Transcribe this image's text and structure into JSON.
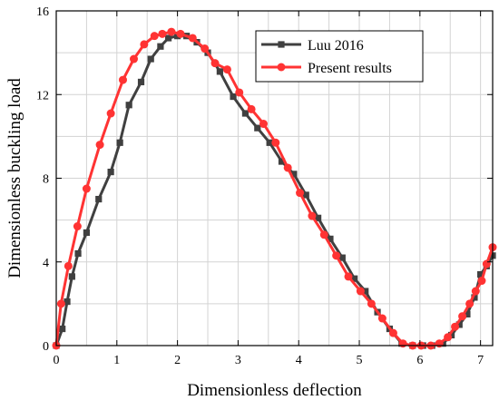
{
  "chart_data": {
    "type": "line",
    "title": "",
    "xlabel": "Dimensionless deflection",
    "ylabel": "Dimensionless buckling load",
    "xlim": [
      0,
      7.2
    ],
    "ylim": [
      0,
      16
    ],
    "x_ticks": [
      0,
      1,
      2,
      3,
      4,
      5,
      6,
      7
    ],
    "y_ticks": [
      0,
      4,
      8,
      12,
      16
    ],
    "grid": true,
    "legend_position": "top-right",
    "series": [
      {
        "name": "Luu 2016",
        "color": "#404040",
        "marker": "square",
        "x": [
          0.0,
          0.1,
          0.18,
          0.26,
          0.36,
          0.5,
          0.7,
          0.9,
          1.05,
          1.2,
          1.4,
          1.56,
          1.72,
          1.85,
          2.0,
          2.15,
          2.32,
          2.5,
          2.7,
          2.92,
          3.12,
          3.32,
          3.52,
          3.72,
          3.92,
          4.12,
          4.32,
          4.52,
          4.72,
          4.92,
          5.1,
          5.3,
          5.5,
          5.7,
          5.88,
          6.05,
          6.2,
          6.38,
          6.52,
          6.65,
          6.78,
          6.9,
          7.0,
          7.1,
          7.2
        ],
        "values": [
          0.0,
          0.8,
          2.1,
          3.3,
          4.4,
          5.4,
          7.0,
          8.3,
          9.7,
          11.5,
          12.6,
          13.7,
          14.3,
          14.7,
          14.8,
          14.8,
          14.5,
          14.0,
          13.1,
          11.9,
          11.1,
          10.4,
          9.7,
          8.8,
          8.2,
          7.2,
          6.1,
          5.1,
          4.2,
          3.2,
          2.6,
          1.6,
          0.8,
          0.1,
          0.0,
          0.0,
          0.0,
          0.1,
          0.5,
          1.0,
          1.5,
          2.3,
          3.4,
          3.8,
          4.3
        ]
      },
      {
        "name": "Present results",
        "color": "#ff3333",
        "marker": "circle",
        "x": [
          0.0,
          0.08,
          0.2,
          0.35,
          0.5,
          0.72,
          0.9,
          1.1,
          1.28,
          1.45,
          1.62,
          1.75,
          1.9,
          2.05,
          2.25,
          2.45,
          2.62,
          2.82,
          3.02,
          3.22,
          3.42,
          3.62,
          3.82,
          4.02,
          4.22,
          4.42,
          4.62,
          4.82,
          5.02,
          5.2,
          5.38,
          5.56,
          5.72,
          5.88,
          6.02,
          6.18,
          6.32,
          6.46,
          6.58,
          6.7,
          6.82,
          6.92,
          7.02,
          7.1,
          7.2
        ],
        "values": [
          0.0,
          2.0,
          3.8,
          5.7,
          7.5,
          9.6,
          11.1,
          12.7,
          13.7,
          14.4,
          14.8,
          14.9,
          15.0,
          14.9,
          14.7,
          14.2,
          13.5,
          13.2,
          12.1,
          11.3,
          10.6,
          9.7,
          8.5,
          7.3,
          6.2,
          5.3,
          4.3,
          3.3,
          2.6,
          2.0,
          1.3,
          0.6,
          0.1,
          0.0,
          0.0,
          0.0,
          0.1,
          0.4,
          0.9,
          1.4,
          2.0,
          2.6,
          3.1,
          3.9,
          4.7
        ]
      }
    ]
  }
}
